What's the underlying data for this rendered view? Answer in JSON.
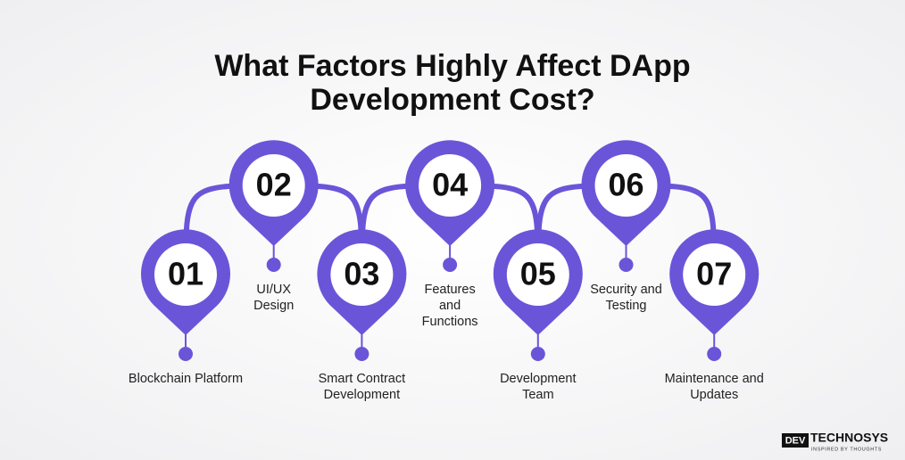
{
  "header": {
    "title_lines": [
      "What Factors Highly Affect DApp",
      "Development Cost?"
    ]
  },
  "steps": [
    {
      "number": "01",
      "label_lines": [
        "Blockchain Platform"
      ]
    },
    {
      "number": "02",
      "label_lines": [
        "UI/UX",
        "Design"
      ]
    },
    {
      "number": "03",
      "label_lines": [
        "Smart Contract",
        "Development"
      ]
    },
    {
      "number": "04",
      "label_lines": [
        "Features",
        "and",
        "Functions"
      ]
    },
    {
      "number": "05",
      "label_lines": [
        "Development",
        "Team"
      ]
    },
    {
      "number": "06",
      "label_lines": [
        "Security and",
        "Testing"
      ]
    },
    {
      "number": "07",
      "label_lines": [
        "Maintenance and",
        "Updates"
      ]
    }
  ],
  "logo": {
    "mark": "DEV",
    "name": "TECHNOSYS",
    "tagline": "INSPIRED BY THOUGHTS"
  }
}
